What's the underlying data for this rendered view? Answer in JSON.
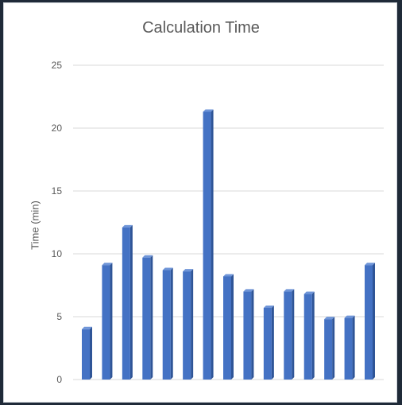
{
  "chart_data": {
    "type": "bar",
    "title": "Calculation Time",
    "xlabel": "",
    "ylabel": "Time (min)",
    "ylim": [
      0,
      25
    ],
    "yticks": [
      0,
      5,
      10,
      15,
      20,
      25
    ],
    "grid": true,
    "legend": "none",
    "bar_color": "#4472c4",
    "gridline_color": "#d9d9d9",
    "values": [
      4.0,
      9.1,
      12.1,
      9.7,
      8.7,
      8.6,
      21.3,
      8.2,
      7.0,
      5.7,
      7.0,
      6.8,
      4.8,
      4.9,
      9.1
    ]
  }
}
